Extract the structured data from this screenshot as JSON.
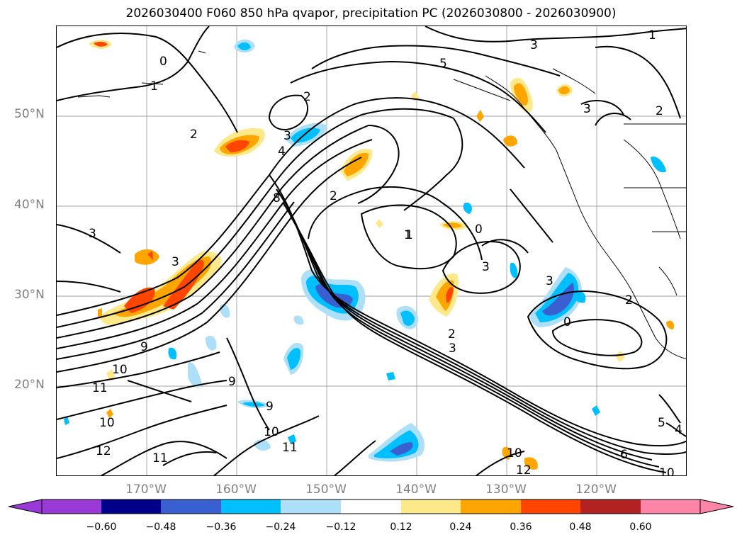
{
  "title": "2026030400 F060 850 hPa qvapor, precipitation PC (2026030800 - 2026030900)",
  "axes": {
    "lat_ticks": [
      "50°N",
      "40°N",
      "30°N",
      "20°N"
    ],
    "lon_ticks": [
      "170°W",
      "160°W",
      "150°W",
      "140°W",
      "130°W",
      "120°W"
    ]
  },
  "contour_labels": [
    "0",
    "1",
    "2",
    "3",
    "5",
    "3",
    "2",
    "1",
    "2",
    "3",
    "4",
    "8",
    "2",
    "1",
    "0",
    "3",
    "3",
    "2",
    "3",
    "9",
    "10",
    "11",
    "12",
    "10",
    "11",
    "9",
    "9",
    "10",
    "11",
    "10",
    "12",
    "6",
    "5",
    "4",
    "10",
    "0",
    "3",
    "2",
    "3",
    "1"
  ],
  "colorbar": {
    "colors": [
      "#9a3ad6",
      "#00008b",
      "#3a5fd0",
      "#00bfff",
      "#ade0f8",
      "#ffffff",
      "#fee98a",
      "#ffa500",
      "#ff4500",
      "#b22222",
      "#ff85a8"
    ],
    "tick_labels": [
      "−0.60",
      "−0.48",
      "−0.36",
      "−0.24",
      "−0.12",
      "0.12",
      "0.24",
      "0.36",
      "0.48",
      "0.60"
    ]
  },
  "chart_data": {
    "type": "map-contour",
    "title": "2026030400 F060 850 hPa qvapor, precipitation PC (2026030800 - 2026030900)",
    "x_range_lon": [
      -180,
      -110
    ],
    "y_range_lat": [
      10,
      60
    ],
    "grid": true,
    "colorbar_levels": [
      -0.6,
      -0.48,
      -0.36,
      -0.24,
      -0.12,
      0.12,
      0.24,
      0.36,
      0.48,
      0.6
    ]
  }
}
